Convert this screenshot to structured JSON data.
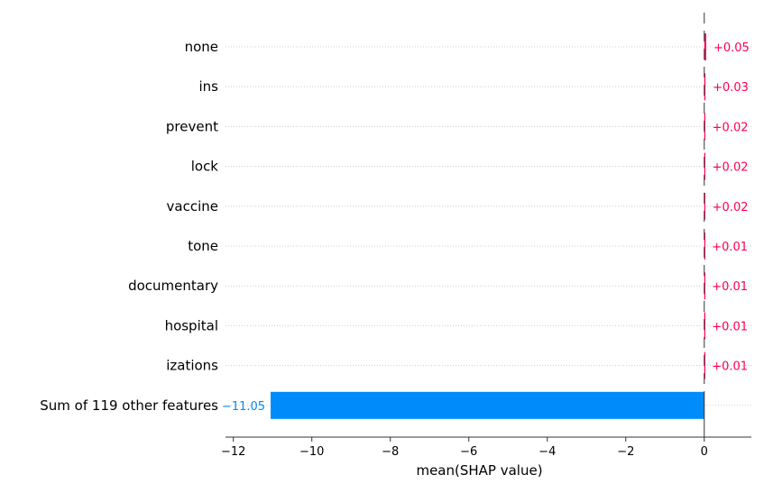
{
  "chart_data": {
    "type": "bar",
    "orientation": "horizontal",
    "categories": [
      "none",
      "ins",
      "prevent",
      "lock",
      "vaccine",
      "tone",
      "documentary",
      "hospital",
      "izations",
      "Sum of 119 other features"
    ],
    "values": [
      0.05,
      0.03,
      0.02,
      0.02,
      0.02,
      0.01,
      0.01,
      0.01,
      0.01,
      -11.05
    ],
    "value_labels": [
      "+0.05",
      "+0.03",
      "+0.02",
      "+0.02",
      "+0.02",
      "+0.01",
      "+0.01",
      "+0.01",
      "+0.01",
      "−11.05"
    ],
    "xlabel": "mean(SHAP value)",
    "xlim": [
      -12.2,
      1.2
    ],
    "xticks": [
      -12,
      -10,
      -8,
      -6,
      -4,
      -2,
      0
    ],
    "xtick_labels": [
      "−12",
      "−10",
      "−8",
      "−6",
      "−4",
      "−2",
      "0"
    ],
    "grid": "horizontal dotted row lines",
    "colors": {
      "positive": "#ff0051",
      "negative": "#008bfb",
      "positive_label": "#ff0051",
      "negative_label": "#008bfb",
      "axis": "#333333",
      "grid": "#cccccc",
      "zero_line": "#333333"
    }
  }
}
